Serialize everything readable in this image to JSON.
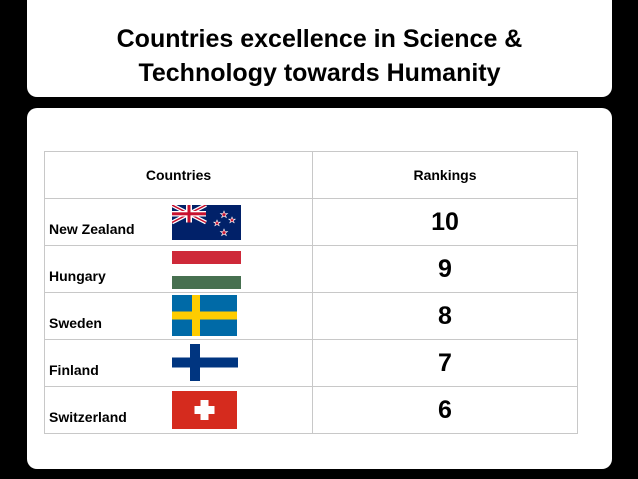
{
  "slide": {
    "title": "Countries excellence in Science &\nTechnology towards Humanity"
  },
  "table": {
    "headers": [
      "Countries",
      "Rankings"
    ],
    "rows": [
      {
        "country": "New Zealand",
        "rank": "10",
        "flag_icon": "new-zealand-flag-icon"
      },
      {
        "country": "Hungary",
        "rank": "9",
        "flag_icon": "hungary-flag-icon"
      },
      {
        "country": "Sweden",
        "rank": "8",
        "flag_icon": "sweden-flag-icon"
      },
      {
        "country": "Finland",
        "rank": "7",
        "flag_icon": "finland-flag-icon"
      },
      {
        "country": "Switzerland",
        "rank": "6",
        "flag_icon": "switzerland-flag-icon"
      }
    ]
  },
  "colors": {
    "background": "#000000",
    "card": "#ffffff",
    "border": "#c8c8c8"
  }
}
